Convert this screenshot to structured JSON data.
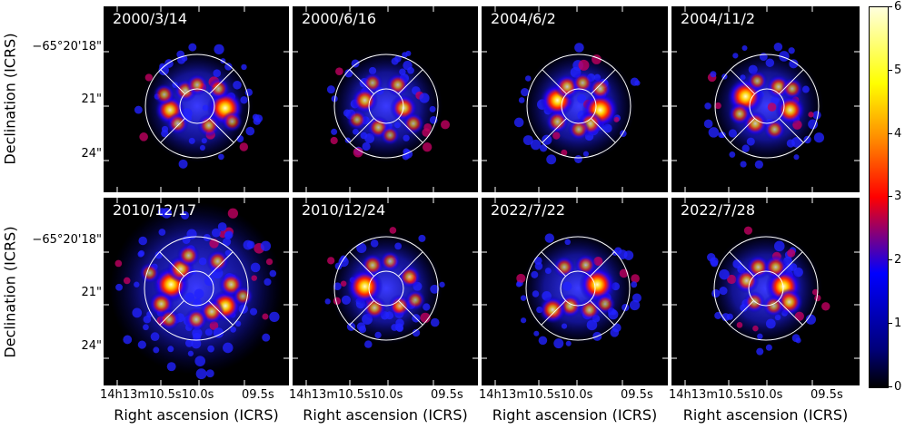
{
  "panels": [
    {
      "label": "2000/3/14",
      "blobs": [
        [
          -0.7,
          0.1,
          0.7
        ],
        [
          0.72,
          0.05,
          1.0
        ],
        [
          -0.3,
          -0.4,
          0.4
        ],
        [
          0.3,
          0.5,
          0.4
        ],
        [
          0.0,
          -0.55,
          0.35
        ],
        [
          -0.5,
          0.45,
          0.35
        ],
        [
          0.55,
          -0.45,
          0.35
        ],
        [
          -0.85,
          -0.3,
          0.35
        ],
        [
          0.9,
          0.4,
          0.3
        ]
      ]
    },
    {
      "label": "2000/6/16",
      "blobs": [
        [
          0.45,
          0.05,
          0.6
        ],
        [
          -0.55,
          -0.15,
          0.55
        ],
        [
          -0.2,
          0.55,
          0.4
        ],
        [
          0.3,
          -0.55,
          0.4
        ],
        [
          -0.35,
          -0.6,
          0.3
        ],
        [
          0.7,
          0.45,
          0.35
        ],
        [
          -0.75,
          0.35,
          0.3
        ],
        [
          0.1,
          0.75,
          0.25
        ]
      ]
    },
    {
      "label": "2004/6/2",
      "blobs": [
        [
          -0.55,
          -0.15,
          0.9
        ],
        [
          0.55,
          0.1,
          1.0
        ],
        [
          -0.3,
          -0.5,
          0.5
        ],
        [
          0.3,
          0.45,
          0.5
        ],
        [
          -0.55,
          0.4,
          0.4
        ],
        [
          0.55,
          -0.45,
          0.4
        ],
        [
          0.0,
          0.6,
          0.35
        ],
        [
          0.1,
          -0.6,
          0.35
        ]
      ]
    },
    {
      "label": "2004/11/2",
      "blobs": [
        [
          -0.55,
          -0.25,
          1.0
        ],
        [
          0.6,
          0.1,
          0.7
        ],
        [
          -0.3,
          0.45,
          0.5
        ],
        [
          0.3,
          -0.5,
          0.45
        ],
        [
          -0.7,
          0.2,
          0.4
        ],
        [
          0.65,
          -0.45,
          0.35
        ],
        [
          0.2,
          0.6,
          0.35
        ],
        [
          -0.25,
          -0.65,
          0.3
        ]
      ]
    },
    {
      "label": "2010/12/17",
      "blobs": [
        [
          -0.65,
          -0.1,
          1.0
        ],
        [
          -0.4,
          -0.5,
          0.6
        ],
        [
          0.75,
          0.45,
          0.8
        ],
        [
          0.9,
          -0.1,
          0.5
        ],
        [
          -0.9,
          0.4,
          0.5
        ],
        [
          0.4,
          0.6,
          0.5
        ],
        [
          0.0,
          0.8,
          0.4
        ],
        [
          -0.2,
          -0.85,
          0.4
        ],
        [
          0.55,
          -0.7,
          0.4
        ],
        [
          -1.2,
          -0.4,
          0.3
        ],
        [
          1.2,
          0.2,
          0.3
        ],
        [
          -0.7,
          0.8,
          0.35
        ]
      ]
    },
    {
      "label": "2010/12/24",
      "blobs": [
        [
          -0.55,
          -0.05,
          1.0
        ],
        [
          -0.3,
          0.5,
          0.45
        ],
        [
          0.35,
          0.45,
          0.4
        ],
        [
          0.6,
          -0.3,
          0.4
        ],
        [
          -0.35,
          -0.6,
          0.4
        ],
        [
          0.1,
          -0.7,
          0.3
        ],
        [
          0.75,
          0.3,
          0.3
        ]
      ]
    },
    {
      "label": "2022/7/22",
      "blobs": [
        [
          0.5,
          -0.1,
          1.0
        ],
        [
          -0.2,
          0.45,
          0.45
        ],
        [
          -0.65,
          0.55,
          0.6
        ],
        [
          0.3,
          0.55,
          0.4
        ],
        [
          -0.35,
          -0.55,
          0.35
        ],
        [
          0.2,
          -0.6,
          0.35
        ],
        [
          0.7,
          0.4,
          0.3
        ]
      ]
    },
    {
      "label": "2022/7/28",
      "blobs": [
        [
          0.45,
          -0.05,
          1.0
        ],
        [
          0.6,
          0.35,
          0.6
        ],
        [
          -0.5,
          -0.2,
          0.5
        ],
        [
          -0.2,
          -0.55,
          0.45
        ],
        [
          0.25,
          -0.55,
          0.45
        ],
        [
          -0.3,
          0.35,
          0.35
        ],
        [
          0.2,
          0.45,
          0.35
        ]
      ]
    }
  ],
  "y_axis": {
    "label": "Declination (ICRS)",
    "ticks": [
      "−65°20'18\"",
      "21\"",
      "24\""
    ]
  },
  "x_axis": {
    "label": "Right ascension (ICRS)",
    "tick_main": "14h13m10.5s10.0s",
    "tick_end": "09.5s"
  },
  "colorbar": {
    "ticks": [
      "0",
      "1",
      "2",
      "3",
      "4",
      "5",
      "6"
    ]
  }
}
